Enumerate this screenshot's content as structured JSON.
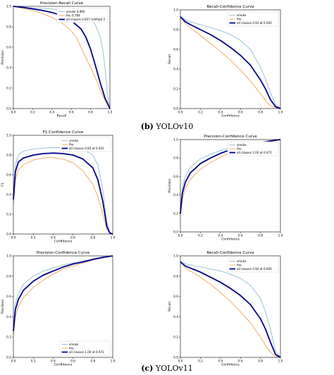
{
  "captions": [
    {
      "tag": "(b)",
      "text": "YOLOv10"
    },
    {
      "tag": "(c)",
      "text": "YOLOv11"
    }
  ],
  "colors": {
    "smoke": "#8fbcd4",
    "fire": "#f0a45a",
    "all": "#00008b",
    "axis": "#000000"
  },
  "chart_data": [
    {
      "type": "line",
      "title": "Precision-Recall Curve",
      "xlabel": "Recall",
      "ylabel": "Precision",
      "xlim": [
        0,
        1
      ],
      "ylim": [
        0,
        1
      ],
      "xticks": [
        "0.0",
        "0.2",
        "0.4",
        "0.6",
        "0.8",
        "1.0"
      ],
      "yticks": [
        "0.0",
        "0.2",
        "0.4",
        "0.6",
        "0.8",
        "1.0"
      ],
      "legend_placement": "top-right",
      "series": [
        {
          "name": "smoke 0.890",
          "key": "smoke",
          "x": [
            0,
            0.1,
            0.2,
            0.3,
            0.4,
            0.5,
            0.6,
            0.7,
            0.8,
            0.85,
            0.9,
            0.93,
            0.96,
            0.98,
            1.0
          ],
          "y": [
            1.0,
            0.99,
            0.985,
            0.98,
            0.975,
            0.965,
            0.95,
            0.93,
            0.88,
            0.82,
            0.7,
            0.55,
            0.3,
            0.1,
            0.0
          ]
        },
        {
          "name": "fire 0.784",
          "key": "fire",
          "x": [
            0,
            0.1,
            0.2,
            0.3,
            0.4,
            0.5,
            0.6,
            0.65,
            0.7,
            0.75,
            0.8,
            0.85,
            0.9,
            0.95,
            1.0
          ],
          "y": [
            1.0,
            0.98,
            0.96,
            0.93,
            0.89,
            0.84,
            0.76,
            0.7,
            0.6,
            0.5,
            0.4,
            0.3,
            0.18,
            0.08,
            0.0
          ]
        },
        {
          "name": "all classes 0.837 mAP@0.5",
          "key": "all",
          "x": [
            0,
            0.1,
            0.2,
            0.3,
            0.4,
            0.5,
            0.6,
            0.7,
            0.75,
            0.8,
            0.85,
            0.9,
            0.95,
            1.0
          ],
          "y": [
            1.0,
            0.99,
            0.975,
            0.96,
            0.94,
            0.91,
            0.86,
            0.78,
            0.7,
            0.58,
            0.42,
            0.25,
            0.1,
            0.0
          ]
        }
      ]
    },
    {
      "type": "line",
      "title": "Recall-Confidence Curve",
      "xlabel": "Confidence",
      "ylabel": "Recall",
      "xlim": [
        0,
        1
      ],
      "ylim": [
        0,
        1
      ],
      "xticks": [
        "0.0",
        "0.2",
        "0.4",
        "0.6",
        "0.8",
        "1.0"
      ],
      "yticks": [
        "0.0",
        "0.2",
        "0.4",
        "0.6",
        "0.8",
        "1.0"
      ],
      "legend_placement": "top-right",
      "series": [
        {
          "name": "smoke",
          "key": "smoke",
          "x": [
            0,
            0.05,
            0.1,
            0.2,
            0.3,
            0.4,
            0.5,
            0.6,
            0.7,
            0.8,
            0.85,
            0.9,
            0.95,
            1.0
          ],
          "y": [
            0.93,
            0.9,
            0.88,
            0.85,
            0.82,
            0.79,
            0.75,
            0.69,
            0.6,
            0.42,
            0.3,
            0.16,
            0.04,
            0.0
          ]
        },
        {
          "name": "fire",
          "key": "fire",
          "x": [
            0,
            0.05,
            0.1,
            0.2,
            0.3,
            0.4,
            0.5,
            0.6,
            0.7,
            0.8,
            0.85,
            0.9,
            0.95,
            1.0
          ],
          "y": [
            0.93,
            0.86,
            0.82,
            0.74,
            0.66,
            0.58,
            0.49,
            0.39,
            0.28,
            0.15,
            0.08,
            0.03,
            0.01,
            0.0
          ]
        },
        {
          "name": "all classes 0.93 at 0.000",
          "key": "all",
          "x": [
            0,
            0.05,
            0.1,
            0.2,
            0.3,
            0.4,
            0.5,
            0.6,
            0.7,
            0.8,
            0.85,
            0.9,
            0.95,
            1.0
          ],
          "y": [
            0.93,
            0.88,
            0.85,
            0.8,
            0.75,
            0.69,
            0.62,
            0.54,
            0.44,
            0.29,
            0.2,
            0.09,
            0.02,
            0.0
          ]
        }
      ]
    },
    {
      "type": "line",
      "title": "F1-Confidence Curve",
      "xlabel": "Confidence",
      "ylabel": "F1",
      "xlim": [
        0,
        1
      ],
      "ylim": [
        0,
        1
      ],
      "xticks": [
        "0.0",
        "0.2",
        "0.4",
        "0.6",
        "0.8",
        "1.0"
      ],
      "yticks": [
        "0.0",
        "0.2",
        "0.4",
        "0.6",
        "0.8",
        "1.0"
      ],
      "legend_placement": "top-right",
      "series": [
        {
          "name": "smoke",
          "key": "smoke",
          "x": [
            0,
            0.02,
            0.05,
            0.1,
            0.2,
            0.3,
            0.4,
            0.5,
            0.6,
            0.7,
            0.8,
            0.85,
            0.9,
            0.94,
            0.97,
            1.0
          ],
          "y": [
            0.4,
            0.7,
            0.8,
            0.84,
            0.86,
            0.87,
            0.875,
            0.875,
            0.87,
            0.86,
            0.8,
            0.7,
            0.45,
            0.12,
            0.02,
            0.0
          ]
        },
        {
          "name": "fire",
          "key": "fire",
          "x": [
            0,
            0.02,
            0.05,
            0.1,
            0.2,
            0.3,
            0.4,
            0.5,
            0.6,
            0.7,
            0.8,
            0.85,
            0.9,
            0.94,
            0.97,
            1.0
          ],
          "y": [
            0.3,
            0.55,
            0.65,
            0.7,
            0.75,
            0.77,
            0.775,
            0.76,
            0.72,
            0.64,
            0.5,
            0.38,
            0.2,
            0.05,
            0.01,
            0.0
          ]
        },
        {
          "name": "all classes 0.82 at 0.401",
          "key": "all",
          "x": [
            0,
            0.02,
            0.05,
            0.1,
            0.2,
            0.3,
            0.4,
            0.5,
            0.6,
            0.7,
            0.8,
            0.85,
            0.9,
            0.94,
            0.97,
            1.0
          ],
          "y": [
            0.35,
            0.63,
            0.73,
            0.77,
            0.8,
            0.815,
            0.82,
            0.815,
            0.8,
            0.76,
            0.67,
            0.55,
            0.33,
            0.08,
            0.01,
            0.0
          ]
        }
      ]
    },
    {
      "type": "line",
      "title": "Precision-Confidence Curve",
      "xlabel": "Confidence",
      "ylabel": "Precision",
      "xlim": [
        0,
        1
      ],
      "ylim": [
        0,
        1
      ],
      "xticks": [
        "0.0",
        "0.2",
        "0.4",
        "0.6",
        "0.8",
        "1.0"
      ],
      "yticks": [
        "0.0",
        "0.2",
        "0.4",
        "0.6",
        "0.8",
        "1.0"
      ],
      "legend_placement": "top-right",
      "series": [
        {
          "name": "smoke",
          "key": "smoke",
          "x": [
            0,
            0.02,
            0.05,
            0.1,
            0.2,
            0.3,
            0.4,
            0.5,
            0.6,
            0.7,
            0.8,
            0.9,
            1.0
          ],
          "y": [
            0.25,
            0.48,
            0.6,
            0.7,
            0.79,
            0.84,
            0.88,
            0.91,
            0.93,
            0.95,
            0.97,
            0.99,
            1.0
          ]
        },
        {
          "name": "fire",
          "key": "fire",
          "x": [
            0,
            0.02,
            0.05,
            0.1,
            0.2,
            0.3,
            0.4,
            0.5,
            0.6,
            0.7,
            0.8,
            0.9,
            1.0
          ],
          "y": [
            0.18,
            0.36,
            0.47,
            0.57,
            0.68,
            0.75,
            0.81,
            0.86,
            0.9,
            0.93,
            0.96,
            0.98,
            1.0
          ]
        },
        {
          "name": "all classes 1.00 at 0.972",
          "key": "all",
          "x": [
            0,
            0.02,
            0.05,
            0.1,
            0.2,
            0.3,
            0.4,
            0.5,
            0.6,
            0.7,
            0.8,
            0.9,
            1.0
          ],
          "y": [
            0.2,
            0.42,
            0.54,
            0.64,
            0.74,
            0.8,
            0.85,
            0.89,
            0.92,
            0.94,
            0.965,
            0.985,
            1.0
          ]
        }
      ]
    },
    {
      "type": "line",
      "title": "Precision-Confidence Curve",
      "xlabel": "Confidence",
      "ylabel": "Precision",
      "xlim": [
        0,
        1
      ],
      "ylim": [
        0,
        1
      ],
      "xticks": [
        "0.0",
        "0.2",
        "0.4",
        "0.6",
        "0.8",
        "1.0"
      ],
      "yticks": [
        "0.0",
        "0.2",
        "0.4",
        "0.6",
        "0.8",
        "1.0"
      ],
      "legend_placement": "bottom-right",
      "series": [
        {
          "name": "smoke",
          "key": "smoke",
          "x": [
            0,
            0.02,
            0.05,
            0.1,
            0.2,
            0.3,
            0.4,
            0.5,
            0.6,
            0.7,
            0.8,
            0.9,
            1.0
          ],
          "y": [
            0.3,
            0.53,
            0.63,
            0.72,
            0.8,
            0.85,
            0.88,
            0.91,
            0.93,
            0.95,
            0.97,
            0.99,
            1.0
          ]
        },
        {
          "name": "fire",
          "key": "fire",
          "x": [
            0,
            0.02,
            0.05,
            0.1,
            0.2,
            0.3,
            0.4,
            0.5,
            0.6,
            0.7,
            0.8,
            0.9,
            1.0
          ],
          "y": [
            0.22,
            0.4,
            0.5,
            0.59,
            0.69,
            0.76,
            0.82,
            0.87,
            0.9,
            0.93,
            0.96,
            0.98,
            1.0
          ]
        },
        {
          "name": "all classes 1.00 at 0.972",
          "key": "all",
          "x": [
            0,
            0.02,
            0.05,
            0.1,
            0.2,
            0.3,
            0.4,
            0.5,
            0.6,
            0.7,
            0.8,
            0.9,
            1.0
          ],
          "y": [
            0.26,
            0.47,
            0.57,
            0.66,
            0.75,
            0.81,
            0.85,
            0.89,
            0.92,
            0.94,
            0.965,
            0.985,
            1.0
          ]
        }
      ]
    },
    {
      "type": "line",
      "title": "Recall-Confidence Curve",
      "xlabel": "Confidence",
      "ylabel": "Recall",
      "xlim": [
        0,
        1
      ],
      "ylim": [
        0,
        1
      ],
      "xticks": [
        "0.0",
        "0.2",
        "0.4",
        "0.6",
        "0.8",
        "1.0"
      ],
      "yticks": [
        "0.0",
        "0.2",
        "0.4",
        "0.6",
        "0.8",
        "1.0"
      ],
      "legend_placement": "top-right",
      "series": [
        {
          "name": "smoke",
          "key": "smoke",
          "x": [
            0,
            0.05,
            0.1,
            0.2,
            0.3,
            0.4,
            0.5,
            0.6,
            0.7,
            0.8,
            0.85,
            0.9,
            0.95,
            1.0
          ],
          "y": [
            0.95,
            0.92,
            0.91,
            0.89,
            0.87,
            0.85,
            0.82,
            0.78,
            0.71,
            0.58,
            0.45,
            0.28,
            0.06,
            0.0
          ]
        },
        {
          "name": "fire",
          "key": "fire",
          "x": [
            0,
            0.05,
            0.1,
            0.2,
            0.3,
            0.4,
            0.5,
            0.6,
            0.7,
            0.8,
            0.85,
            0.9,
            0.95,
            1.0
          ],
          "y": [
            0.95,
            0.88,
            0.85,
            0.79,
            0.72,
            0.64,
            0.55,
            0.45,
            0.34,
            0.2,
            0.12,
            0.05,
            0.01,
            0.0
          ]
        },
        {
          "name": "all classes 0.94 at 0.000",
          "key": "all",
          "x": [
            0,
            0.05,
            0.1,
            0.2,
            0.3,
            0.4,
            0.5,
            0.6,
            0.7,
            0.8,
            0.85,
            0.9,
            0.95,
            1.0
          ],
          "y": [
            0.94,
            0.9,
            0.88,
            0.84,
            0.79,
            0.74,
            0.68,
            0.61,
            0.52,
            0.38,
            0.28,
            0.15,
            0.03,
            0.0
          ]
        }
      ]
    }
  ]
}
